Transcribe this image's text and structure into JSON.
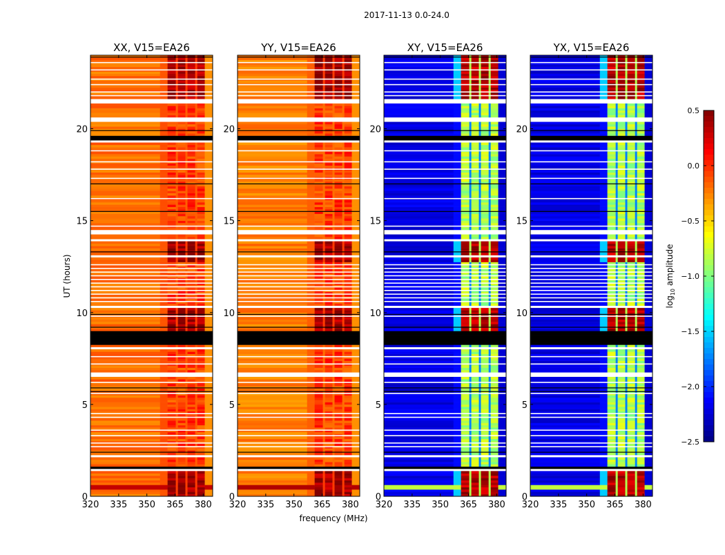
{
  "chart_data": {
    "type": "heatmap",
    "title": "2017-11-13 0.0-24.0",
    "xlabel": "frequency (MHz)",
    "ylabel": "UT (hours)",
    "xlim": [
      320,
      385
    ],
    "ylim": [
      0,
      24
    ],
    "xticks": [
      320,
      335,
      350,
      365,
      380
    ],
    "yticks": [
      0,
      5,
      10,
      15,
      20
    ],
    "colorbar": {
      "label_prefix": "log",
      "label_sub": "10",
      "label_suffix": " amplitude",
      "colormap": "jet",
      "range": [
        -2.5,
        0.5
      ],
      "ticks": [
        0.5,
        0.0,
        -0.5,
        -1.0,
        -1.5,
        -2.0,
        -2.5
      ],
      "tick_labels": [
        "0.5",
        "0.0",
        "−0.5",
        "−1.0",
        "−1.5",
        "−2.0",
        "−2.5"
      ]
    },
    "bands_mhz": [
      [
        361,
        365.4
      ],
      [
        366.5,
        370.5
      ],
      [
        371.6,
        375.7
      ],
      [
        376.8,
        380.8
      ]
    ],
    "flagged_white_hours": [
      [
        21.4,
        21.6
      ],
      [
        20.4,
        20.65
      ],
      [
        19.3,
        19.4
      ],
      [
        14.3,
        14.45
      ],
      [
        13.85,
        14.05
      ],
      [
        12.95,
        13.1
      ],
      [
        10.2,
        10.35
      ],
      [
        8.05,
        8.15
      ],
      [
        6.55,
        6.72
      ],
      [
        2.1,
        2.2
      ],
      [
        1.35,
        1.55
      ]
    ],
    "flagged_black_hours": [
      [
        19.4,
        19.6
      ],
      [
        8.25,
        9.05
      ],
      [
        1.55,
        1.65
      ]
    ],
    "thin_white_hours": [
      23.6,
      23.2,
      22.7,
      22.4,
      22.0,
      21.8,
      18.8,
      18.2,
      17.8,
      17.3,
      16.2,
      14.7,
      12.6,
      12.4,
      12.2,
      12.0,
      11.8,
      11.6,
      11.4,
      11.2,
      11.0,
      10.8,
      10.6,
      9.8,
      7.6,
      7.2,
      6.2,
      5.6,
      4.5,
      4.3,
      3.6,
      3.3,
      2.9,
      2.7
    ],
    "thin_black_hours": [
      23.9,
      19.9,
      17.0,
      15.5,
      13.3,
      9.9,
      9.2,
      5.9,
      5.7,
      2.4
    ],
    "hot_intervals_hours": [
      [
        0,
        1.35
      ],
      [
        8.2,
        10.2
      ],
      [
        12.8,
        13.9
      ],
      [
        21.6,
        24
      ]
    ],
    "hot_line_hours": [
      0.35,
      0.65
    ],
    "panels": [
      {
        "title": "XX, V15=EA26",
        "continuum": -0.2,
        "band": -0.05,
        "band_hot": 0.4,
        "gap": -0.15,
        "edge": -0.3,
        "line": 0.3
      },
      {
        "title": "YY, V15=EA26",
        "continuum": -0.25,
        "band": -0.05,
        "band_hot": 0.4,
        "gap": -0.2,
        "edge": -0.3,
        "line": 0.35
      },
      {
        "title": "XY, V15=EA26",
        "continuum": -2.2,
        "band": -0.85,
        "band_hot": 0.35,
        "gap": -1.75,
        "edge": -2.25,
        "line": -0.8
      },
      {
        "title": "YX, V15=EA26",
        "continuum": -2.2,
        "band": -0.85,
        "band_hot": 0.35,
        "gap": -1.75,
        "edge": -2.25,
        "line": -0.8
      }
    ]
  }
}
